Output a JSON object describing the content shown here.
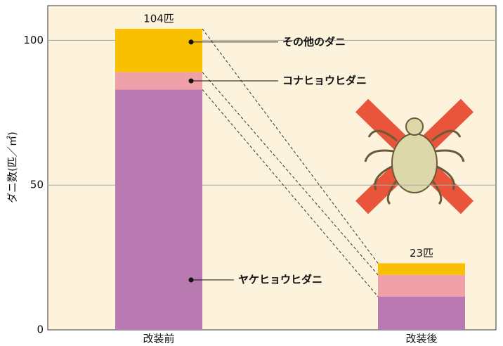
{
  "chart_data": {
    "type": "stacked_bar",
    "y_label": "ダニ数(匹／㎡)",
    "categories": [
      "改装前",
      "改装後"
    ],
    "series": [
      {
        "name": "ヤケヒョウヒダニ",
        "color": "#b87ab0",
        "values": [
          83,
          11.5
        ]
      },
      {
        "name": "コナヒョウヒダニ",
        "color": "#f0a0a8",
        "values": [
          6,
          7.5
        ]
      },
      {
        "name": "その他のダニ",
        "color": "#f8c000",
        "values": [
          15,
          4
        ]
      }
    ],
    "totals": [
      104,
      23
    ],
    "total_labels": [
      "104匹",
      "23匹"
    ],
    "ylim": [
      0,
      112
    ],
    "yticks": [
      0,
      50,
      100
    ],
    "grid": true
  }
}
